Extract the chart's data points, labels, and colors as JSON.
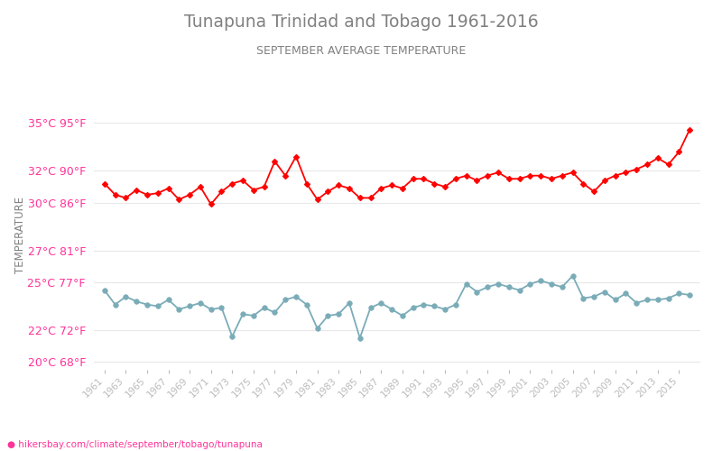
{
  "title": "Tunapuna Trinidad and Tobago 1961-2016",
  "subtitle": "SEPTEMBER AVERAGE TEMPERATURE",
  "ylabel": "TEMPERATURE",
  "url": "hikersbay.com/climate/september/tobago/tunapuna",
  "years": [
    1961,
    1962,
    1963,
    1964,
    1965,
    1966,
    1967,
    1968,
    1969,
    1970,
    1971,
    1972,
    1973,
    1974,
    1975,
    1976,
    1977,
    1978,
    1979,
    1980,
    1981,
    1982,
    1983,
    1984,
    1985,
    1986,
    1987,
    1988,
    1989,
    1990,
    1991,
    1992,
    1993,
    1994,
    1995,
    1996,
    1997,
    1998,
    1999,
    2000,
    2001,
    2002,
    2003,
    2004,
    2005,
    2006,
    2007,
    2008,
    2009,
    2010,
    2011,
    2012,
    2013,
    2014,
    2015,
    2016
  ],
  "day_temps": [
    31.2,
    30.5,
    30.3,
    30.8,
    30.5,
    30.6,
    30.9,
    30.2,
    30.5,
    31.0,
    29.9,
    30.7,
    31.2,
    31.4,
    30.8,
    31.0,
    32.6,
    31.7,
    32.9,
    31.2,
    30.2,
    30.7,
    31.1,
    30.9,
    30.3,
    30.3,
    30.9,
    31.1,
    30.9,
    31.5,
    31.5,
    31.2,
    31.0,
    31.5,
    31.7,
    31.4,
    31.7,
    31.9,
    31.5,
    31.5,
    31.7,
    31.7,
    31.5,
    31.7,
    31.9,
    31.2,
    30.7,
    31.4,
    31.7,
    31.9,
    32.1,
    32.4,
    32.8,
    32.4,
    33.2,
    34.6
  ],
  "night_temps": [
    24.5,
    23.6,
    24.1,
    23.8,
    23.6,
    23.5,
    23.9,
    23.3,
    23.5,
    23.7,
    23.3,
    23.4,
    21.6,
    23.0,
    22.9,
    23.4,
    23.1,
    23.9,
    24.1,
    23.6,
    22.1,
    22.9,
    23.0,
    23.7,
    21.5,
    23.4,
    23.7,
    23.3,
    22.9,
    23.4,
    23.6,
    23.5,
    23.3,
    23.6,
    24.9,
    24.4,
    24.7,
    24.9,
    24.7,
    24.5,
    24.9,
    25.1,
    24.9,
    24.7,
    25.4,
    24.0,
    24.1,
    24.4,
    23.9,
    24.3,
    23.7,
    23.9,
    23.9,
    24.0,
    24.3,
    24.2
  ],
  "day_color": "#ff0000",
  "night_color": "#7aacb8",
  "title_color": "#808080",
  "subtitle_color": "#808080",
  "ylabel_color": "#808080",
  "tick_label_color": "#ff3399",
  "xtick_color": "#bbbbbb",
  "grid_color": "#e8e8e8",
  "background_color": "#ffffff",
  "ylim_min": 19.5,
  "ylim_max": 36.5,
  "yticks_celsius": [
    20,
    22,
    25,
    27,
    30,
    32,
    35
  ],
  "yticks_fahrenheit": [
    68,
    72,
    77,
    81,
    86,
    90,
    95
  ],
  "marker_size_day": 3,
  "marker_size_night": 4,
  "line_width": 1.3
}
